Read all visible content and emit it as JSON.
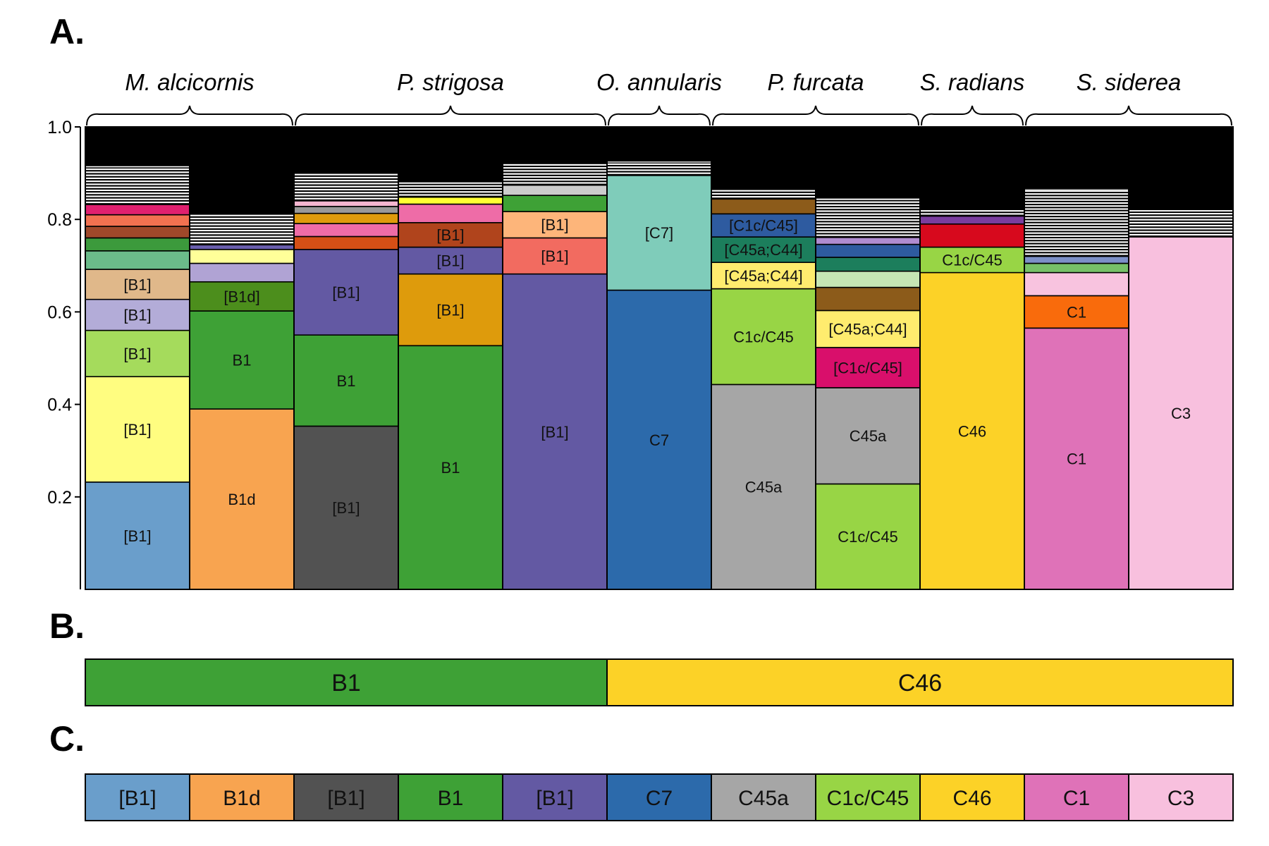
{
  "panels": {
    "a": "A.",
    "b": "B.",
    "c": "C."
  },
  "species": [
    "M. alcicornis",
    "P. strigosa",
    "O. annularis",
    "P. furcata",
    "S. radians",
    "S. siderea"
  ],
  "y_ticks": [
    "1.0",
    "0.8",
    "0.6",
    "0.4",
    "0.2"
  ],
  "chart_data": [
    {
      "type": "bar",
      "stacked": true,
      "ylim": [
        0,
        1
      ],
      "ticks": [
        1.0,
        0.8,
        0.6,
        0.4,
        0.2
      ],
      "groups": [
        {
          "name": "M. alcicornis",
          "samples": [
            0,
            1
          ]
        },
        {
          "name": "P. strigosa",
          "samples": [
            2,
            3,
            4
          ]
        },
        {
          "name": "O. annularis",
          "samples": [
            5
          ]
        },
        {
          "name": "P. furcata",
          "samples": [
            6,
            7
          ]
        },
        {
          "name": "S. radians",
          "samples": [
            8
          ]
        },
        {
          "name": "S. siderea",
          "samples": [
            9,
            10
          ]
        }
      ],
      "samples": [
        {
          "top": 0.915,
          "segments": [
            {
              "v": 0.232,
              "c": "#6a9ecb",
              "l": "[B1]"
            },
            {
              "v": 0.228,
              "c": "#fffd80",
              "l": "[B1]"
            },
            {
              "v": 0.1,
              "c": "#a5db5c",
              "l": "[B1]"
            },
            {
              "v": 0.067,
              "c": "#b3acd8",
              "l": "[B1]"
            },
            {
              "v": 0.065,
              "c": "#e0b88a",
              "l": "[B1]"
            },
            {
              "v": 0.04,
              "c": "#6bbb8a",
              "l": ""
            },
            {
              "v": 0.028,
              "c": "#3c9a3c",
              "l": ""
            },
            {
              "v": 0.025,
              "c": "#a0482a",
              "l": ""
            },
            {
              "v": 0.025,
              "c": "#f27150",
              "l": ""
            },
            {
              "v": 0.022,
              "c": "#e0206f",
              "l": ""
            }
          ]
        },
        {
          "top": 0.81,
          "segments": [
            {
              "v": 0.39,
              "c": "#f8a450",
              "l": "B1d"
            },
            {
              "v": 0.212,
              "c": "#3ea136",
              "l": "B1"
            },
            {
              "v": 0.063,
              "c": "#4c8e1c",
              "l": "[B1d]"
            },
            {
              "v": 0.04,
              "c": "#b0a3d4",
              "l": ""
            },
            {
              "v": 0.03,
              "c": "#ffff99",
              "l": ""
            },
            {
              "v": 0.01,
              "c": "#6a5fae",
              "l": ""
            }
          ]
        },
        {
          "top": 0.9,
          "segments": [
            {
              "v": 0.353,
              "c": "#525252",
              "l": "[B1]"
            },
            {
              "v": 0.197,
              "c": "#3ea136",
              "l": "B1"
            },
            {
              "v": 0.185,
              "c": "#6359a3",
              "l": "[B1]"
            },
            {
              "v": 0.028,
              "c": "#d44f16",
              "l": ""
            },
            {
              "v": 0.028,
              "c": "#ee6ca7",
              "l": ""
            },
            {
              "v": 0.022,
              "c": "#de9b0c",
              "l": ""
            },
            {
              "v": 0.015,
              "c": "#999999",
              "l": ""
            },
            {
              "v": 0.012,
              "c": "#f4b6d0",
              "l": ""
            }
          ]
        },
        {
          "top": 0.88,
          "segments": [
            {
              "v": 0.527,
              "c": "#3ea136",
              "l": "B1"
            },
            {
              "v": 0.155,
              "c": "#de9b0c",
              "l": "[B1]"
            },
            {
              "v": 0.058,
              "c": "#6359a3",
              "l": "[B1]"
            },
            {
              "v": 0.053,
              "c": "#b0441c",
              "l": "[B1]"
            },
            {
              "v": 0.04,
              "c": "#ee6ca7",
              "l": ""
            },
            {
              "v": 0.015,
              "c": "#ffff33",
              "l": ""
            }
          ]
        },
        {
          "top": 0.92,
          "segments": [
            {
              "v": 0.682,
              "c": "#6359a3",
              "l": "[B1]"
            },
            {
              "v": 0.078,
              "c": "#f26b60",
              "l": "[B1]"
            },
            {
              "v": 0.057,
              "c": "#fdb57a",
              "l": "[B1]"
            },
            {
              "v": 0.035,
              "c": "#3ea136",
              "l": ""
            },
            {
              "v": 0.022,
              "c": "#cccccc",
              "l": ""
            }
          ]
        },
        {
          "top": 0.925,
          "segments": [
            {
              "v": 0.647,
              "c": "#2c6aab",
              "l": "C7"
            },
            {
              "v": 0.248,
              "c": "#7fccba",
              "l": "[C7]"
            }
          ]
        },
        {
          "top": 0.865,
          "segments": [
            {
              "v": 0.443,
              "c": "#a6a6a6",
              "l": "C45a"
            },
            {
              "v": 0.207,
              "c": "#98d545",
              "l": "C1c/C45"
            },
            {
              "v": 0.057,
              "c": "#ffec6e",
              "l": "[C45a;C44]"
            },
            {
              "v": 0.055,
              "c": "#1c7e5c",
              "l": "[C45a;C44]"
            },
            {
              "v": 0.05,
              "c": "#2e5ba0",
              "l": "[C1c/C45]"
            },
            {
              "v": 0.032,
              "c": "#8c5b1a",
              "l": ""
            }
          ]
        },
        {
          "top": 0.845,
          "segments": [
            {
              "v": 0.228,
              "c": "#98d545",
              "l": "C1c/C45"
            },
            {
              "v": 0.208,
              "c": "#a6a6a6",
              "l": "C45a"
            },
            {
              "v": 0.087,
              "c": "#d90f6b",
              "l": "[C1c/C45]"
            },
            {
              "v": 0.08,
              "c": "#ffec6e",
              "l": "[C45a;C44]"
            },
            {
              "v": 0.05,
              "c": "#8c5b1a",
              "l": ""
            },
            {
              "v": 0.035,
              "c": "#c6e6b4",
              "l": ""
            },
            {
              "v": 0.03,
              "c": "#1c7e5c",
              "l": ""
            },
            {
              "v": 0.028,
              "c": "#2e5ba0",
              "l": ""
            },
            {
              "v": 0.015,
              "c": "#b08cd0",
              "l": ""
            }
          ]
        },
        {
          "top": 0.82,
          "segments": [
            {
              "v": 0.685,
              "c": "#fcd227",
              "l": "C46"
            },
            {
              "v": 0.055,
              "c": "#98d545",
              "l": "C1c/C45"
            },
            {
              "v": 0.05,
              "c": "#d7091d",
              "l": ""
            },
            {
              "v": 0.017,
              "c": "#7a3d9e",
              "l": ""
            }
          ]
        },
        {
          "top": 0.865,
          "segments": [
            {
              "v": 0.565,
              "c": "#df72b8",
              "l": "C1"
            },
            {
              "v": 0.07,
              "c": "#f96b0c",
              "l": "C1"
            },
            {
              "v": 0.05,
              "c": "#f8c3df",
              "l": ""
            },
            {
              "v": 0.02,
              "c": "#77c168",
              "l": ""
            },
            {
              "v": 0.015,
              "c": "#7d90c8",
              "l": ""
            }
          ]
        },
        {
          "top": 0.82,
          "segments": [
            {
              "v": 0.762,
              "c": "#f8c0de",
              "l": "C3"
            }
          ]
        }
      ]
    },
    {
      "type": "bar",
      "orientation": "horizontal",
      "segments": [
        {
          "label": "B1",
          "span": 5,
          "color": "#3ea136"
        },
        {
          "label": "C46",
          "span": 6,
          "color": "#fcd227"
        }
      ]
    },
    {
      "type": "bar",
      "orientation": "horizontal",
      "segments": [
        {
          "label": "[B1]",
          "color": "#6a9ecb"
        },
        {
          "label": "B1d",
          "color": "#f8a450"
        },
        {
          "label": "[B1]",
          "color": "#525252"
        },
        {
          "label": "B1",
          "color": "#3ea136"
        },
        {
          "label": "[B1]",
          "color": "#6359a3"
        },
        {
          "label": "C7",
          "color": "#2c6aab"
        },
        {
          "label": "C45a",
          "color": "#a6a6a6"
        },
        {
          "label": "C1c/C45",
          "color": "#98d545"
        },
        {
          "label": "C46",
          "color": "#fcd227"
        },
        {
          "label": "C1",
          "color": "#df72b8"
        },
        {
          "label": "C3",
          "color": "#f8c0de"
        }
      ]
    }
  ]
}
